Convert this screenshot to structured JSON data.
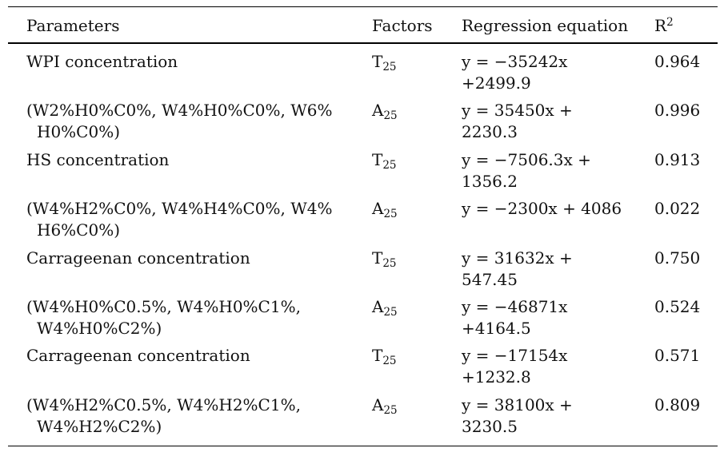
{
  "colors": {
    "background": "#ffffff",
    "text": "#111111",
    "rule": "#000000"
  },
  "table": {
    "columns": {
      "parameters": "Parameters",
      "factors": "Factors",
      "equation": "Regression equation",
      "r2_base": "R",
      "r2_sup": "2"
    },
    "rows": [
      {
        "param_lines": [
          "WPI concentration"
        ],
        "factor": {
          "base": "T",
          "sub": "25"
        },
        "eq_lines": [
          "y = −35242x",
          "+2499.9"
        ],
        "r2": "0.964"
      },
      {
        "param_lines": [
          "(W2%H0%C0%, W4%H0%C0%, W6%",
          "H0%C0%)"
        ],
        "factor": {
          "base": "A",
          "sub": "25"
        },
        "eq_lines": [
          "y = 35450x +",
          "2230.3"
        ],
        "r2": "0.996"
      },
      {
        "param_lines": [
          "HS concentration"
        ],
        "factor": {
          "base": "T",
          "sub": "25"
        },
        "eq_lines": [
          "y = −7506.3x +",
          "1356.2"
        ],
        "r2": "0.913"
      },
      {
        "param_lines": [
          "(W4%H2%C0%, W4%H4%C0%, W4%",
          "H6%C0%)"
        ],
        "factor": {
          "base": "A",
          "sub": "25"
        },
        "eq_lines": [
          "y = −2300x + 4086"
        ],
        "r2": "0.022"
      },
      {
        "param_lines": [
          "Carrageenan concentration"
        ],
        "factor": {
          "base": "T",
          "sub": "25"
        },
        "eq_lines": [
          "y = 31632x +",
          "547.45"
        ],
        "r2": "0.750"
      },
      {
        "param_lines": [
          "(W4%H0%C0.5%, W4%H0%C1%,",
          "W4%H0%C2%)"
        ],
        "factor": {
          "base": "A",
          "sub": "25"
        },
        "eq_lines": [
          "y = −46871x",
          "+4164.5"
        ],
        "r2": "0.524"
      },
      {
        "param_lines": [
          "Carrageenan concentration"
        ],
        "factor": {
          "base": "T",
          "sub": "25"
        },
        "eq_lines": [
          "y = −17154x",
          "+1232.8"
        ],
        "r2": "0.571"
      },
      {
        "param_lines": [
          "(W4%H2%C0.5%, W4%H2%C1%,",
          "W4%H2%C2%)"
        ],
        "factor": {
          "base": "A",
          "sub": "25"
        },
        "eq_lines": [
          "y = 38100x +",
          "3230.5"
        ],
        "r2": "0.809"
      }
    ]
  }
}
